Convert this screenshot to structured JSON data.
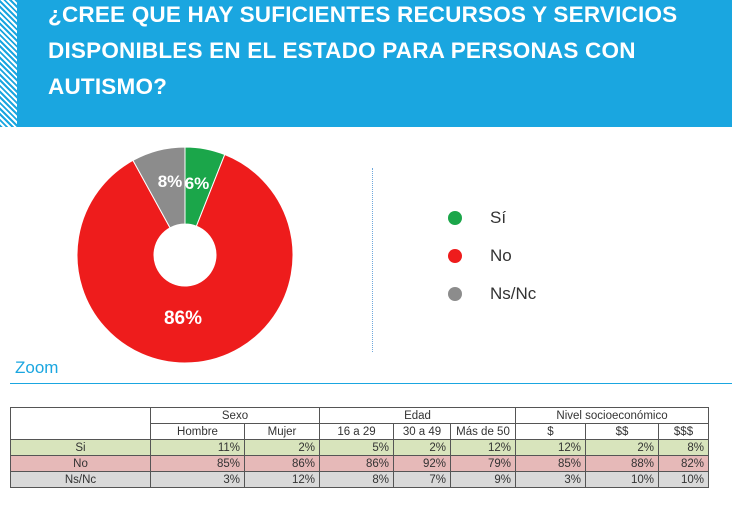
{
  "title": "¿CREE QUE HAY SUFICIENTES RECURSOS Y SERVICIOS DISPONIBLES EN EL ESTADO PARA PERSONAS CON AUTISMO?",
  "colors": {
    "header": "#1aa6e0",
    "si": "#1ba64a",
    "no": "#ee1c1c",
    "nsnc": "#8c8c8c"
  },
  "chart_data": {
    "type": "pie",
    "donut": true,
    "slices": [
      {
        "label": "Sí",
        "value": 6,
        "text": "6%",
        "color": "#1ba64a"
      },
      {
        "label": "No",
        "value": 86,
        "text": "86%",
        "color": "#ee1c1c"
      },
      {
        "label": "Ns/Nc",
        "value": 8,
        "text": "8%",
        "color": "#8c8c8c"
      }
    ],
    "legend_placement": "right"
  },
  "legend": [
    {
      "label": "Sí",
      "color": "#1ba64a"
    },
    {
      "label": "No",
      "color": "#ee1c1c"
    },
    {
      "label": "Ns/Nc",
      "color": "#8c8c8c"
    }
  ],
  "zoom_label": "Zoom",
  "table": {
    "groups": [
      {
        "label": "Sexo"
      },
      {
        "label": "Edad"
      },
      {
        "label": "Nivel socioeconómico"
      }
    ],
    "columns": [
      "Hombre",
      "Mujer",
      "16 a 29",
      "30 a 49",
      "Más de 50",
      "$",
      "$$",
      "$$$"
    ],
    "rows": [
      {
        "label": "Si",
        "values": [
          "11%",
          "2%",
          "5%",
          "2%",
          "12%",
          "12%",
          "2%",
          "8%"
        ]
      },
      {
        "label": "No",
        "values": [
          "85%",
          "86%",
          "86%",
          "92%",
          "79%",
          "85%",
          "88%",
          "82%"
        ]
      },
      {
        "label": "Ns/Nc",
        "values": [
          "3%",
          "12%",
          "8%",
          "7%",
          "9%",
          "3%",
          "10%",
          "10%"
        ]
      }
    ]
  }
}
